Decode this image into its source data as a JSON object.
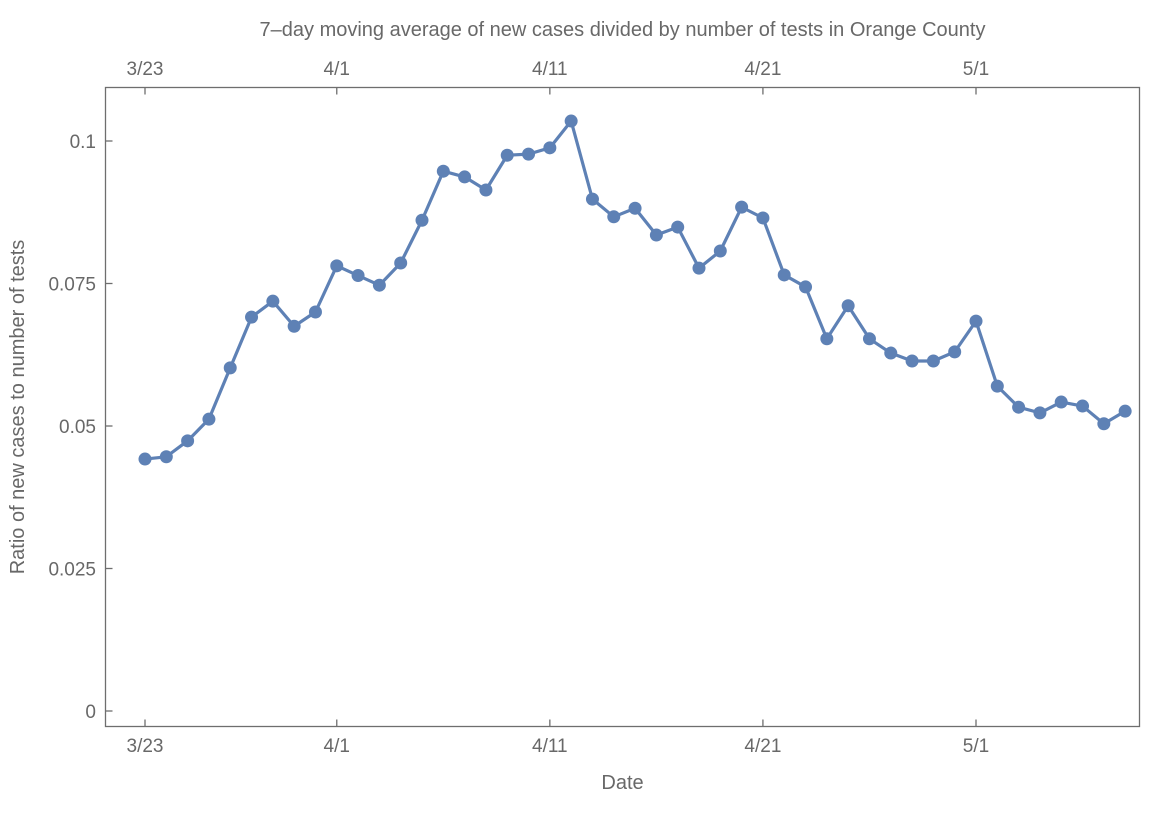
{
  "chart_data": {
    "type": "line",
    "title": "7–day moving average of new cases divided by number of tests in Orange County",
    "xlabel": "Date",
    "ylabel": "Ratio of new cases to number of tests",
    "categories": [
      "3/23",
      "3/24",
      "3/25",
      "3/26",
      "3/27",
      "3/28",
      "3/29",
      "3/30",
      "3/31",
      "4/1",
      "4/2",
      "4/3",
      "4/4",
      "4/5",
      "4/6",
      "4/7",
      "4/8",
      "4/9",
      "4/10",
      "4/11",
      "4/12",
      "4/13",
      "4/14",
      "4/15",
      "4/16",
      "4/17",
      "4/18",
      "4/19",
      "4/20",
      "4/21",
      "4/22",
      "4/23",
      "4/24",
      "4/25",
      "4/26",
      "4/27",
      "4/28",
      "4/29",
      "4/30",
      "5/1",
      "5/2",
      "5/3",
      "5/4",
      "5/5",
      "5/6",
      "5/7",
      "5/8"
    ],
    "values": [
      0.0442,
      0.0446,
      0.0474,
      0.0512,
      0.0602,
      0.0691,
      0.0719,
      0.0675,
      0.07,
      0.0781,
      0.0764,
      0.0747,
      0.0786,
      0.0861,
      0.0947,
      0.0937,
      0.0914,
      0.0975,
      0.0977,
      0.0988,
      0.1035,
      0.0898,
      0.0867,
      0.0882,
      0.0835,
      0.0849,
      0.0777,
      0.0807,
      0.0884,
      0.0865,
      0.0765,
      0.0744,
      0.0653,
      0.0711,
      0.0653,
      0.0628,
      0.0614,
      0.0614,
      0.063,
      0.0684,
      0.057,
      0.0533,
      0.0523,
      0.0542,
      0.0535,
      0.0504,
      0.0526
    ],
    "x_ticks": [
      {
        "label": "3/23",
        "index": 0
      },
      {
        "label": "4/1",
        "index": 9
      },
      {
        "label": "4/11",
        "index": 19
      },
      {
        "label": "4/21",
        "index": 29
      },
      {
        "label": "5/1",
        "index": 39
      }
    ],
    "y_ticks": [
      {
        "label": "0",
        "value": 0
      },
      {
        "label": "0.025",
        "value": 0.025
      },
      {
        "label": "0.05",
        "value": 0.05
      },
      {
        "label": "0.075",
        "value": 0.075
      },
      {
        "label": "0.1",
        "value": 0.1
      }
    ],
    "ylim": [
      -0.0027,
      0.1094
    ],
    "xlim_labels": [
      "3/21",
      "5/9"
    ],
    "grid": false,
    "legend_position": "none",
    "series_color": "#5e81b5",
    "frame_color": "#6e6e6e",
    "text_color": "#686868"
  }
}
